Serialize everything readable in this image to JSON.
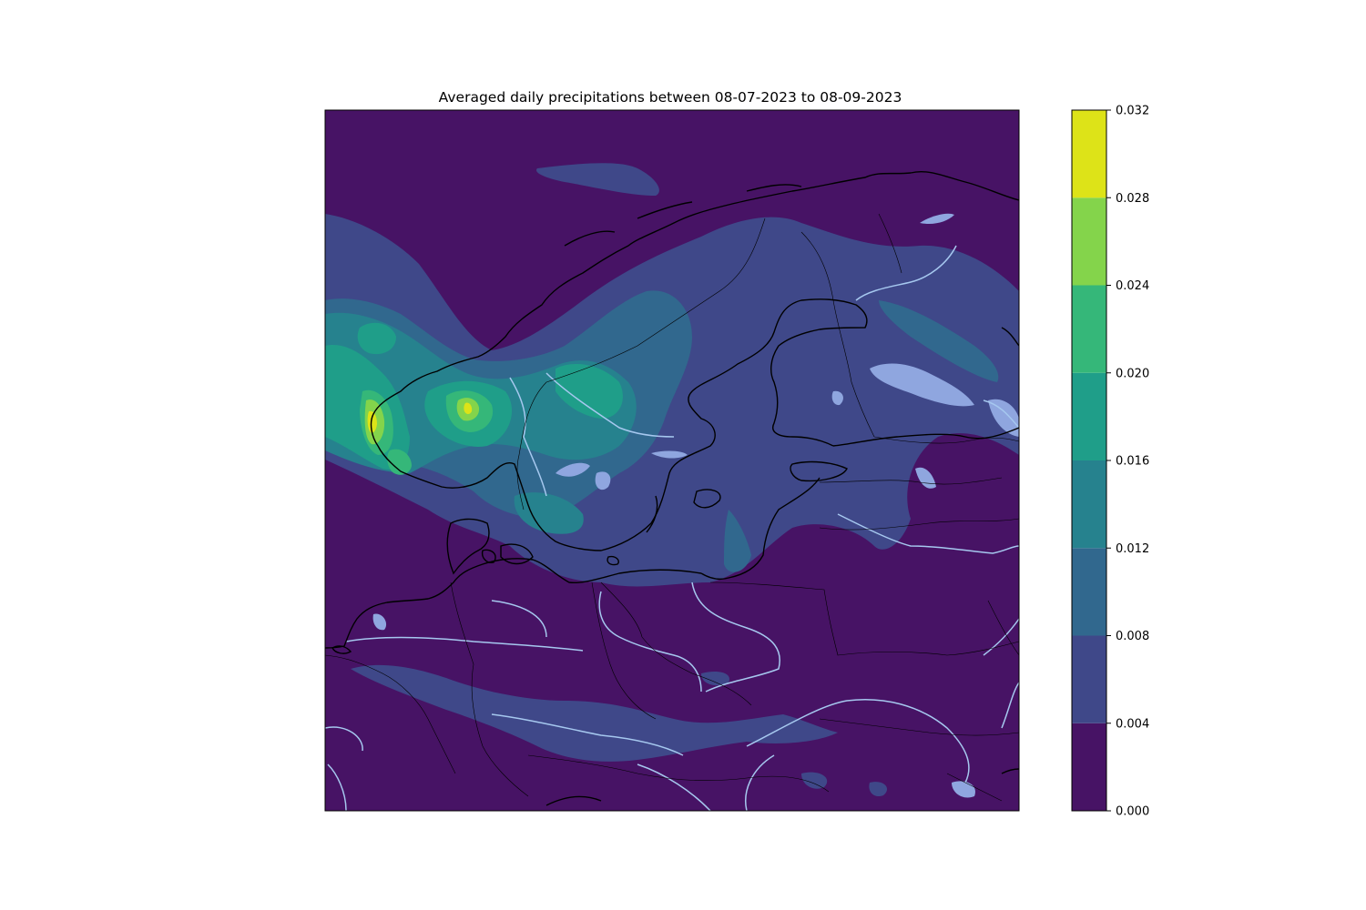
{
  "figure": {
    "title": "Averaged daily precipitations between 08-07-2023 to 08-09-2023"
  },
  "colorbar": {
    "levels": [
      0.0,
      0.004,
      0.008,
      0.012,
      0.016,
      0.02,
      0.024,
      0.028,
      0.032
    ],
    "tick_labels": [
      "0.000",
      "0.004",
      "0.008",
      "0.012",
      "0.016",
      "0.020",
      "0.024",
      "0.028",
      "0.032"
    ],
    "colors": [
      "#471365",
      "#3f4889",
      "#31688e",
      "#26828e",
      "#1f9e89",
      "#35b779",
      "#84d44b",
      "#dde318"
    ]
  },
  "map": {
    "background_color": "#471365",
    "coastline_color": "#000000",
    "river_color": "#a6c8ef",
    "lake_color": "#8fa6df"
  }
}
